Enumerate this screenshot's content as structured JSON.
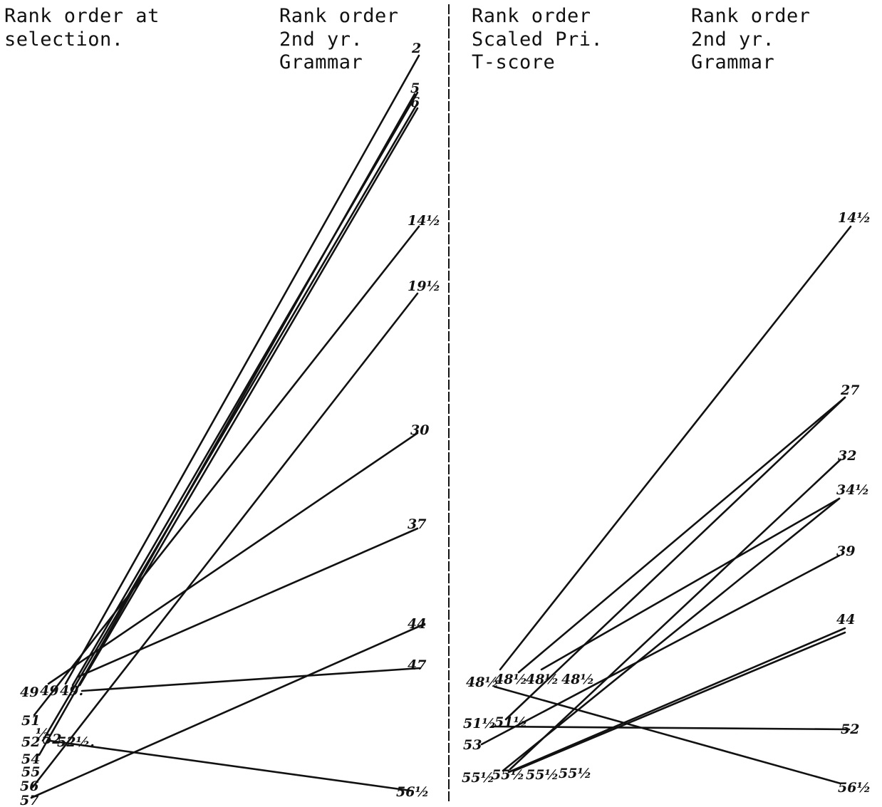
{
  "left_panel": {
    "header_left": [
      "Rank order at",
      " selection."
    ],
    "header_right": [
      "Rank order",
      "2nd yr.",
      "Grammar"
    ],
    "selection_labels": [
      "49",
      "49",
      "49.",
      "51",
      "52",
      "52",
      "½",
      "52½.",
      "54",
      "55",
      "56",
      "57"
    ],
    "grammar_labels": [
      "2",
      "5",
      "6",
      "14½",
      "19½",
      "30",
      "37",
      "44",
      "47",
      "56½"
    ]
  },
  "right_panel": {
    "header_left": [
      "Rank order",
      "Scaled Pri.",
      " T-score"
    ],
    "header_right": [
      "Rank order",
      " 2nd yr.",
      "Grammar"
    ],
    "score_labels": [
      "48½",
      "48½",
      "48½",
      "48½",
      "51½",
      "51½",
      "53",
      "55½",
      "55½",
      "55½",
      "55½"
    ],
    "grammar_labels": [
      "14½",
      "27",
      "32",
      "34½",
      "39",
      "44",
      "52",
      "56½"
    ]
  }
}
